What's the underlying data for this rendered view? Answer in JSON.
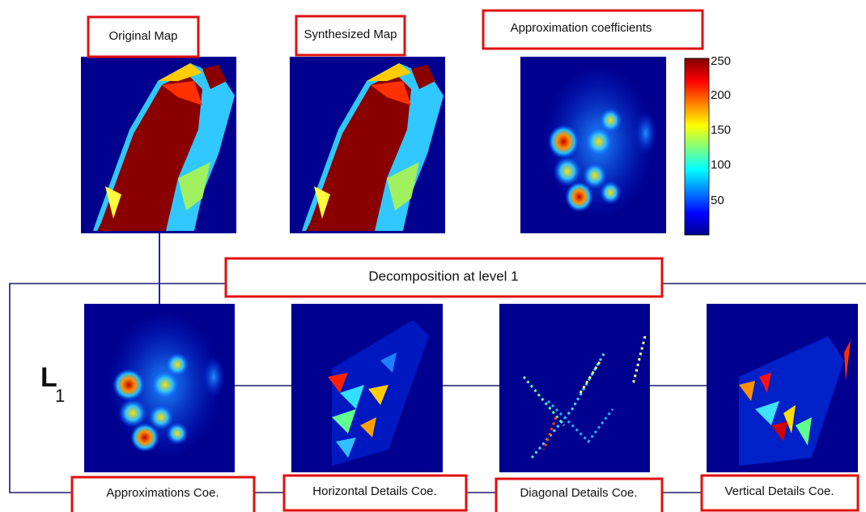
{
  "top": {
    "labels": [
      "Original Map",
      "Synthesized Map",
      "Approximation coefficients"
    ]
  },
  "colorbar": {
    "ticks": [
      "250",
      "200",
      "150",
      "100",
      "50"
    ]
  },
  "decomposition": {
    "title": "Decomposition at level 1",
    "level": {
      "letter": "L",
      "subscript": "1"
    }
  },
  "bottom": {
    "labels": [
      "Approximations Coe.",
      "Horizontal Details Coe.",
      "Diagonal Details Coe.",
      "Vertical Details Coe."
    ]
  }
}
